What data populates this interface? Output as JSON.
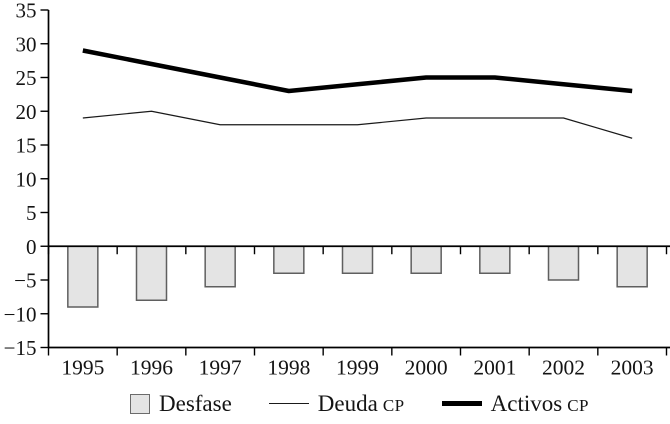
{
  "chart_data": {
    "type": "combo",
    "title": "",
    "xlabel": "",
    "ylabel": "",
    "categories": [
      "1995",
      "1996",
      "1997",
      "1998",
      "1999",
      "2000",
      "2001",
      "2002",
      "2003"
    ],
    "series": [
      {
        "name": "Desfase",
        "type": "bar",
        "values": [
          -9,
          -8,
          -6,
          -4,
          -4,
          -4,
          -4,
          -5,
          -6
        ]
      },
      {
        "name": "Deuda CP",
        "type": "line",
        "thickness": "thin",
        "values": [
          19,
          20,
          18,
          18,
          18,
          19,
          19,
          19,
          16
        ]
      },
      {
        "name": "Activos CP",
        "type": "line",
        "thickness": "thick",
        "values": [
          29,
          27,
          25,
          23,
          24,
          25,
          25,
          24,
          23
        ]
      }
    ],
    "ylim": [
      -15,
      35
    ],
    "ytick_interval": 5,
    "yticks": [
      {
        "value": 35,
        "label": "35"
      },
      {
        "value": 30,
        "label": "30"
      },
      {
        "value": 25,
        "label": "25"
      },
      {
        "value": 20,
        "label": "20"
      },
      {
        "value": 15,
        "label": "15"
      },
      {
        "value": 10,
        "label": "10"
      },
      {
        "value": 5,
        "label": "5"
      },
      {
        "value": 0,
        "label": "0"
      },
      {
        "value": -5,
        "label": "−5"
      },
      {
        "value": -10,
        "label": "−10"
      },
      {
        "value": -15,
        "label": "−15"
      }
    ],
    "grid": false,
    "legend_position": "bottom"
  },
  "colors": {
    "background": "#ffffff",
    "bar_fill": "#e4e4e4",
    "bar_stroke": "#5f5f5f",
    "line_thin": "#1a1a1a",
    "line_thick": "#000000",
    "axis": "#000000",
    "text": "#141414"
  },
  "legend": {
    "items": [
      {
        "label": "Desfase",
        "suffix": "",
        "swatch": "bar"
      },
      {
        "label": "Deuda",
        "suffix": "CP",
        "swatch": "thin-line"
      },
      {
        "label": "Activos",
        "suffix": "CP",
        "swatch": "thick-line"
      }
    ]
  }
}
